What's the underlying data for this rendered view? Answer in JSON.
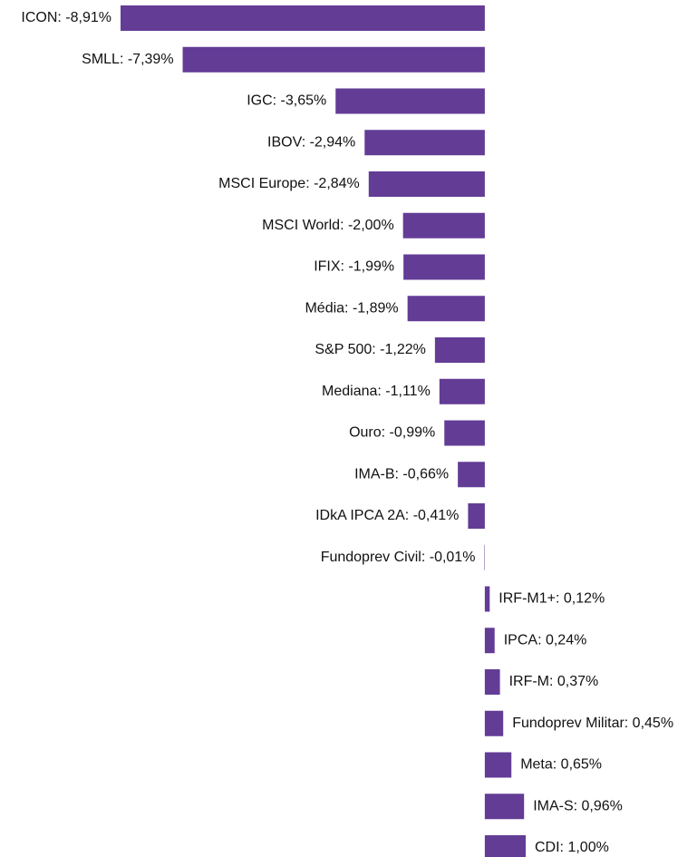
{
  "chart_data": {
    "type": "barh",
    "values": [
      -8.91,
      -7.39,
      -3.65,
      -2.94,
      -2.84,
      -2.0,
      -1.99,
      -1.89,
      -1.22,
      -1.11,
      -0.99,
      -0.66,
      -0.41,
      -0.01,
      0.12,
      0.24,
      0.37,
      0.45,
      0.65,
      0.96,
      1.0
    ],
    "value_labels": [
      "ICON: -8,91%",
      "SMLL: -7,39%",
      "IGC: -3,65%",
      "IBOV: -2,94%",
      "MSCI Europe: -2,84%",
      "MSCI World: -2,00%",
      "IFIX: -1,99%",
      "Média: -1,89%",
      "S&P 500: -1,22%",
      "Mediana: -1,11%",
      "Ouro: -0,99%",
      "IMA-B: -0,66%",
      "IDkA IPCA 2A: -0,41%",
      "Fundoprev Civil: -0,01%",
      "IRF-M1+: 0,12%",
      "IPCA: 0,24%",
      "IRF-M: 0,37%",
      "Fundoprev Militar: 0,45%",
      "Meta: 0,65%",
      "IMA-S: 0,96%",
      "CDI: 1,00%"
    ],
    "color": "#633c96"
  }
}
